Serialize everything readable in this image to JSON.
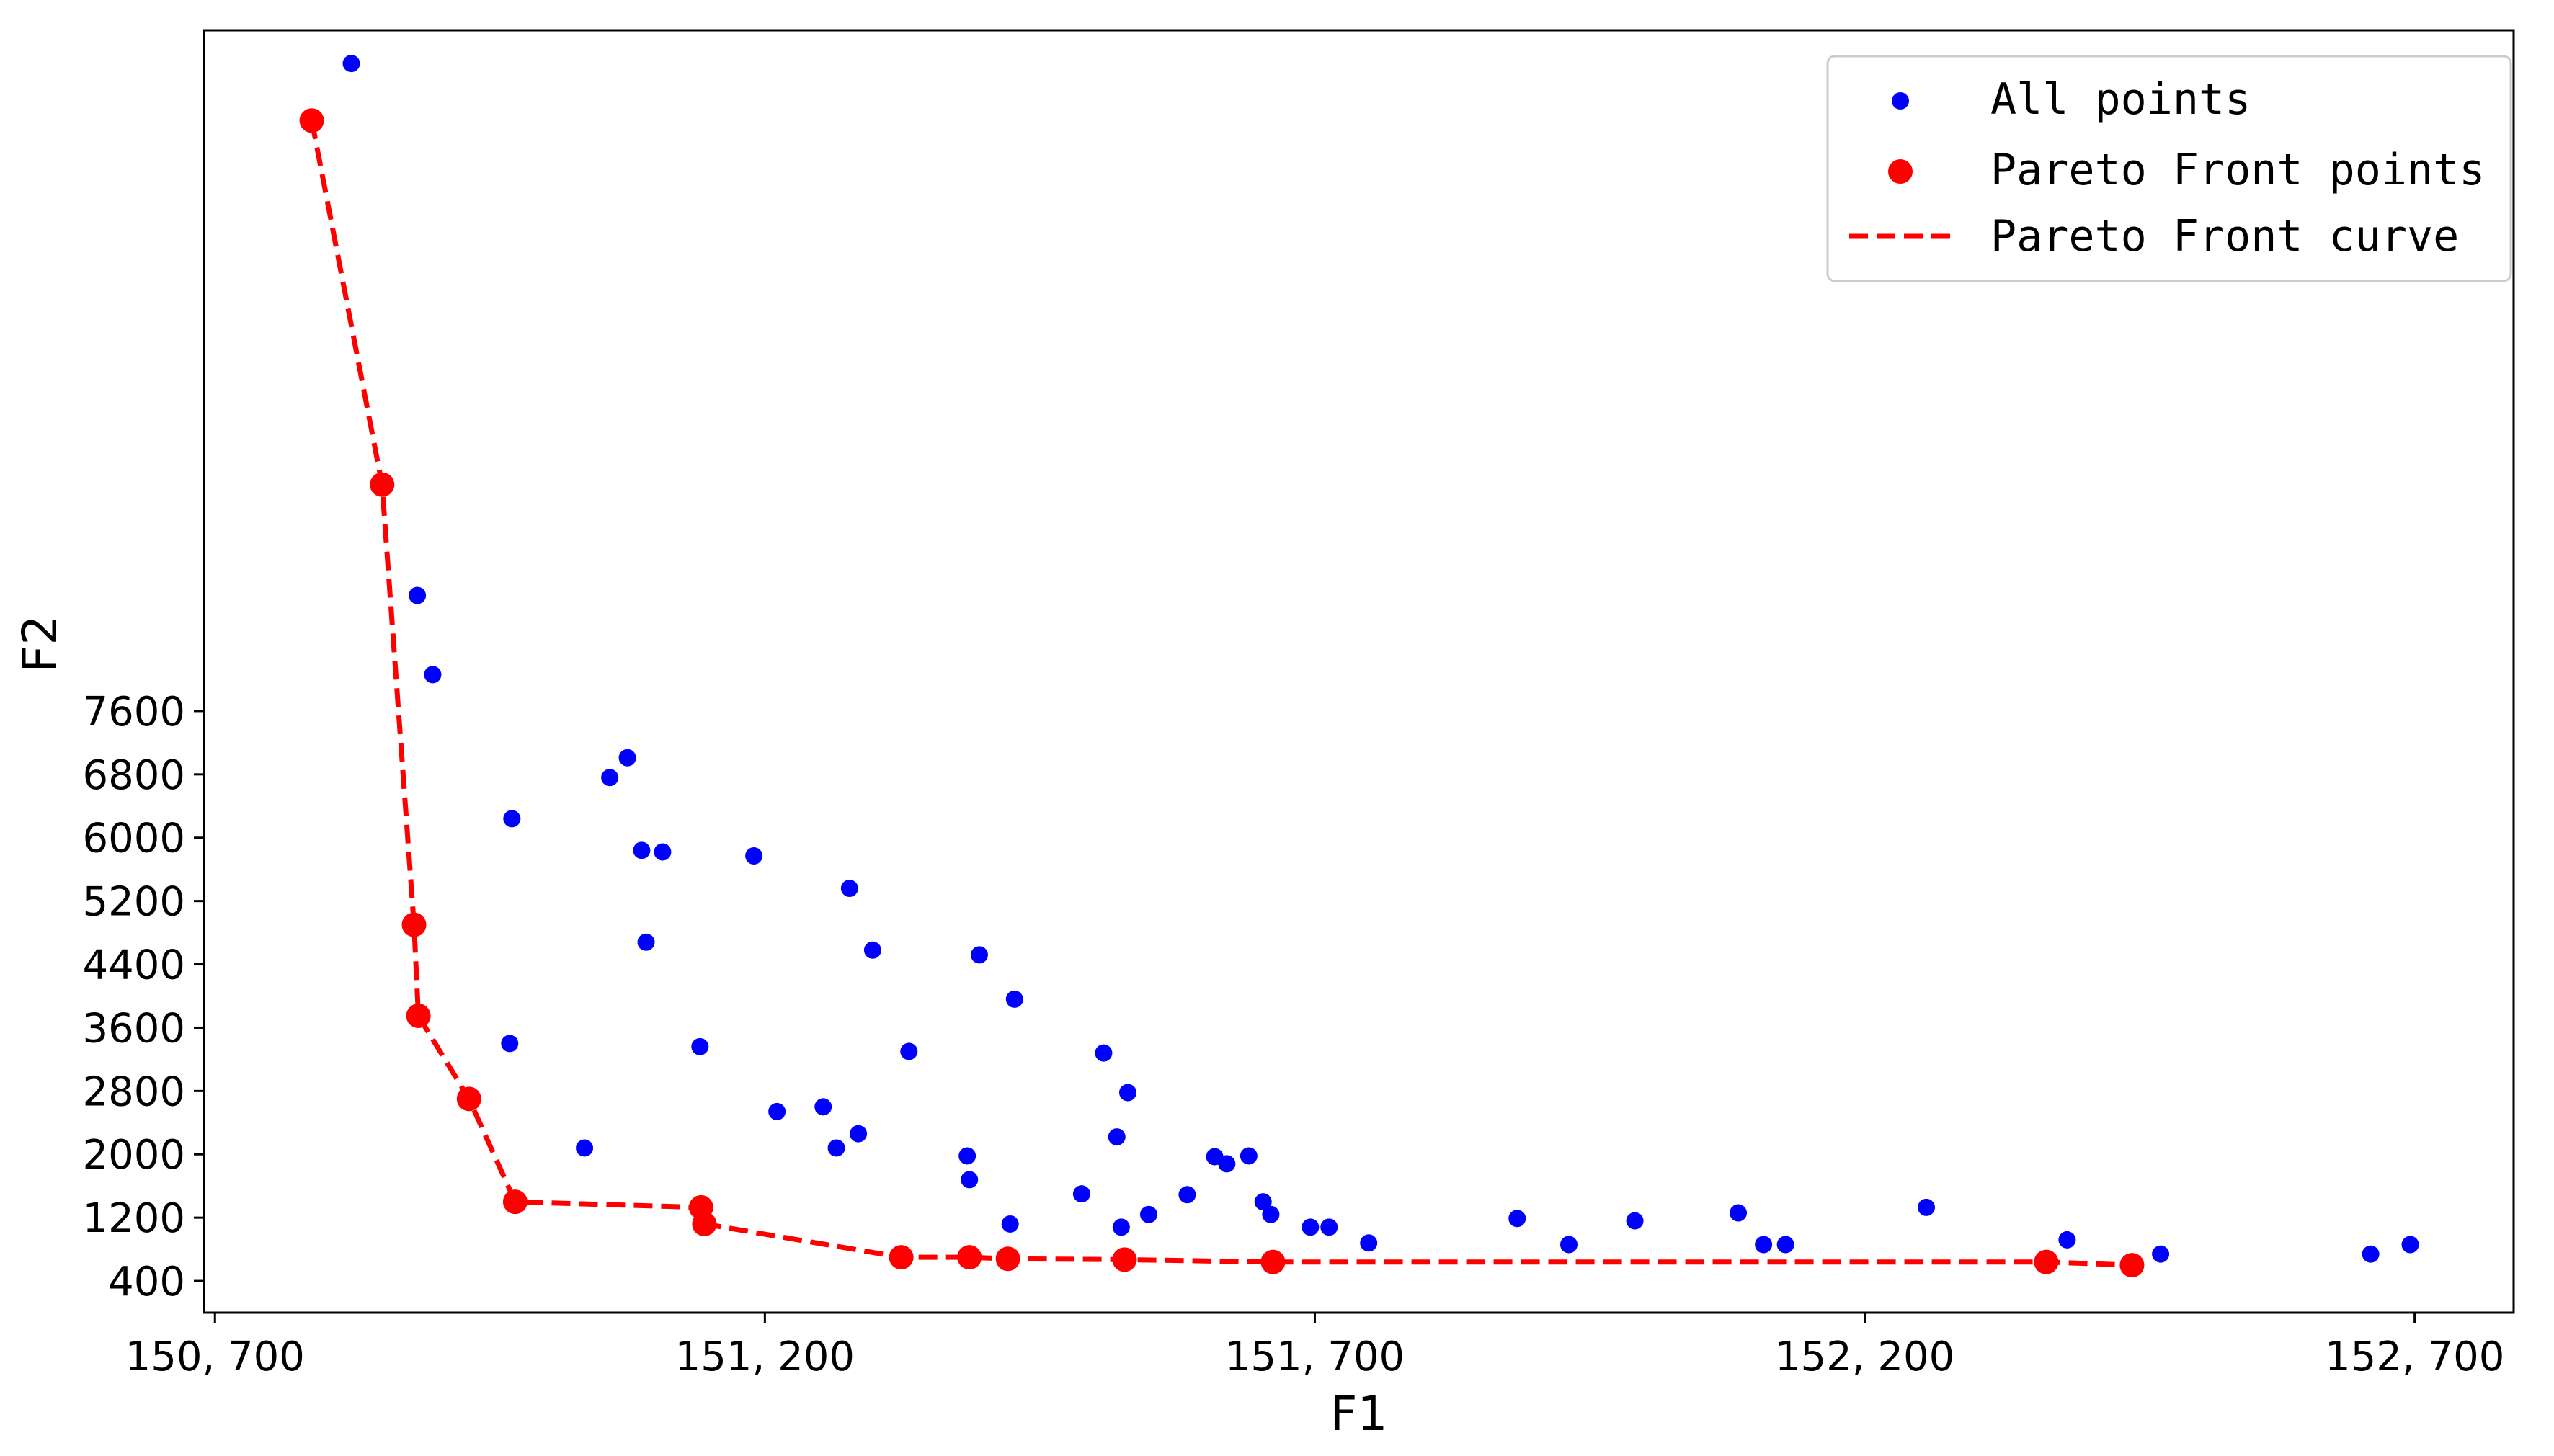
{
  "chart_data": {
    "type": "scatter",
    "title": "",
    "xlabel": "F1",
    "ylabel": "F2",
    "xlim": [
      150690,
      152790
    ],
    "ylim": [
      0,
      16200
    ],
    "x_ticks": [
      150700,
      151200,
      151700,
      152200,
      152700
    ],
    "x_tick_labels": [
      "150, 700",
      "151, 200",
      "151, 700",
      "152, 200",
      "152, 700"
    ],
    "y_ticks": [
      400,
      1200,
      2000,
      2800,
      3600,
      4400,
      5200,
      6000,
      6800,
      7600
    ],
    "y_tick_labels": [
      "400",
      "1200",
      "2000",
      "2800",
      "3600",
      "4400",
      "5200",
      "6000",
      "6800",
      "7600"
    ],
    "grid": false,
    "legend_position": "top-right",
    "colors": {
      "all_points": "#0000ff",
      "pareto": "#ff0000"
    },
    "series": [
      {
        "name": "All points",
        "kind": "scatter",
        "color": "#0000ff",
        "points": [
          [
            150824,
            15780
          ],
          [
            150884,
            9060
          ],
          [
            150898,
            8060
          ],
          [
            150970,
            6240
          ],
          [
            150968,
            3400
          ],
          [
            151036,
            2080
          ],
          [
            151059,
            6760
          ],
          [
            151075,
            7010
          ],
          [
            151088,
            5840
          ],
          [
            151092,
            4680
          ],
          [
            151107,
            5820
          ],
          [
            151141,
            3360
          ],
          [
            151190,
            5770
          ],
          [
            151211,
            2540
          ],
          [
            151253,
            2600
          ],
          [
            151265,
            2080
          ],
          [
            151277,
            5360
          ],
          [
            151285,
            2260
          ],
          [
            151298,
            4580
          ],
          [
            151331,
            3300
          ],
          [
            151384,
            1980
          ],
          [
            151386,
            1680
          ],
          [
            151395,
            4520
          ],
          [
            151423,
            1120
          ],
          [
            151427,
            3960
          ],
          [
            151488,
            1500
          ],
          [
            151508,
            3280
          ],
          [
            151520,
            2220
          ],
          [
            151524,
            1080
          ],
          [
            151530,
            2780
          ],
          [
            151549,
            1240
          ],
          [
            151584,
            1490
          ],
          [
            151609,
            1970
          ],
          [
            151620,
            1880
          ],
          [
            151640,
            1980
          ],
          [
            151653,
            1400
          ],
          [
            151660,
            1240
          ],
          [
            151696,
            1080
          ],
          [
            151713,
            1080
          ],
          [
            151749,
            880
          ],
          [
            151884,
            1190
          ],
          [
            151931,
            860
          ],
          [
            151991,
            1160
          ],
          [
            152085,
            1260
          ],
          [
            152108,
            860
          ],
          [
            152128,
            860
          ],
          [
            152256,
            1330
          ],
          [
            152384,
            920
          ],
          [
            152469,
            740
          ],
          [
            152660,
            740
          ],
          [
            152696,
            860
          ]
        ]
      },
      {
        "name": "Pareto Front points",
        "kind": "scatter",
        "color": "#ff0000",
        "points": [
          [
            150788,
            15060
          ],
          [
            150852,
            10460
          ],
          [
            150881,
            4900
          ],
          [
            150885,
            3750
          ],
          [
            150931,
            2700
          ],
          [
            150973,
            1400
          ],
          [
            151142,
            1330
          ],
          [
            151145,
            1120
          ],
          [
            151324,
            700
          ],
          [
            151386,
            700
          ],
          [
            151421,
            680
          ],
          [
            151527,
            670
          ],
          [
            151662,
            640
          ],
          [
            152365,
            640
          ],
          [
            152443,
            600
          ]
        ]
      },
      {
        "name": "Pareto Front curve",
        "kind": "line",
        "style": "dashed",
        "color": "#ff0000",
        "points": [
          [
            150788,
            15060
          ],
          [
            150852,
            10460
          ],
          [
            150881,
            4900
          ],
          [
            150885,
            3750
          ],
          [
            150931,
            2700
          ],
          [
            150973,
            1400
          ],
          [
            151142,
            1330
          ],
          [
            151145,
            1120
          ],
          [
            151324,
            700
          ],
          [
            151386,
            700
          ],
          [
            151421,
            680
          ],
          [
            151527,
            670
          ],
          [
            151662,
            640
          ],
          [
            152365,
            640
          ],
          [
            152443,
            600
          ]
        ]
      }
    ]
  }
}
